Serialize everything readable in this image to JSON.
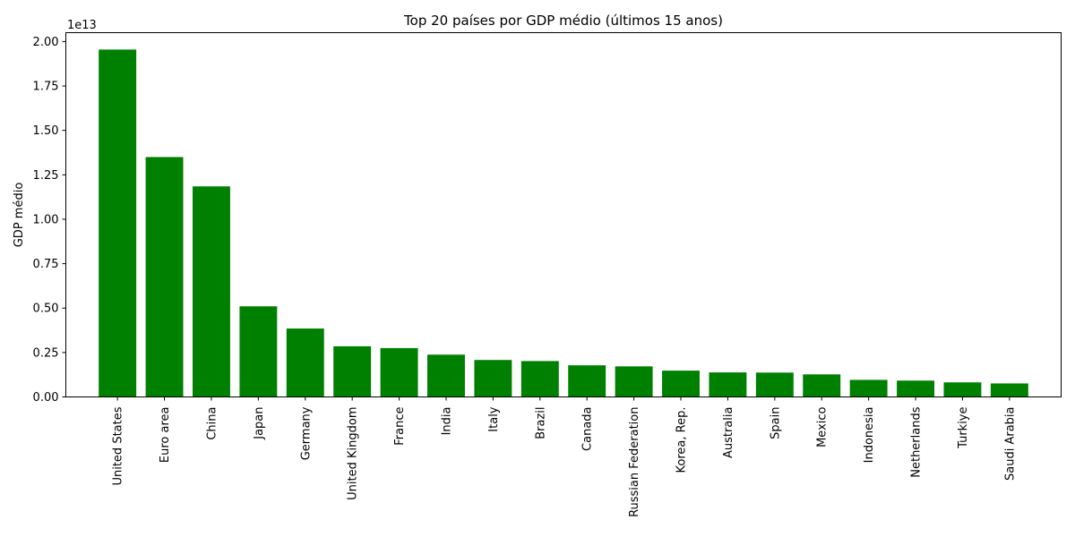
{
  "chart_data": {
    "type": "bar",
    "title": "Top 20 países por GDP médio (últimos 15 anos)",
    "xlabel": "",
    "ylabel": "GDP médio",
    "y_offset_label": "1e13",
    "bar_color": "#008000",
    "ylim": [
      0,
      20500000000000.0
    ],
    "yticks": [
      0,
      2500000000000.0,
      5000000000000.0,
      7500000000000.0,
      10000000000000.0,
      12500000000000.0,
      15000000000000.0,
      17500000000000.0,
      20000000000000.0
    ],
    "ytick_labels": [
      "0.00",
      "0.25",
      "0.50",
      "0.75",
      "1.00",
      "1.25",
      "1.50",
      "1.75",
      "2.00"
    ],
    "grid": false,
    "categories": [
      "United States",
      "Euro area",
      "China",
      "Japan",
      "Germany",
      "United Kingdom",
      "France",
      "India",
      "Italy",
      "Brazil",
      "Canada",
      "Russian Federation",
      "Korea, Rep.",
      "Australia",
      "Spain",
      "Mexico",
      "Indonesia",
      "Netherlands",
      "Turkiye",
      "Saudi Arabia"
    ],
    "values": [
      19550000000000.0,
      13500000000000.0,
      11850000000000.0,
      5100000000000.0,
      3850000000000.0,
      2850000000000.0,
      2750000000000.0,
      2380000000000.0,
      2080000000000.0,
      2020000000000.0,
      1780000000000.0,
      1720000000000.0,
      1480000000000.0,
      1380000000000.0,
      1370000000000.0,
      1270000000000.0,
      960000000000.0,
      920000000000.0,
      820000000000.0,
      760000000000.0
    ]
  }
}
